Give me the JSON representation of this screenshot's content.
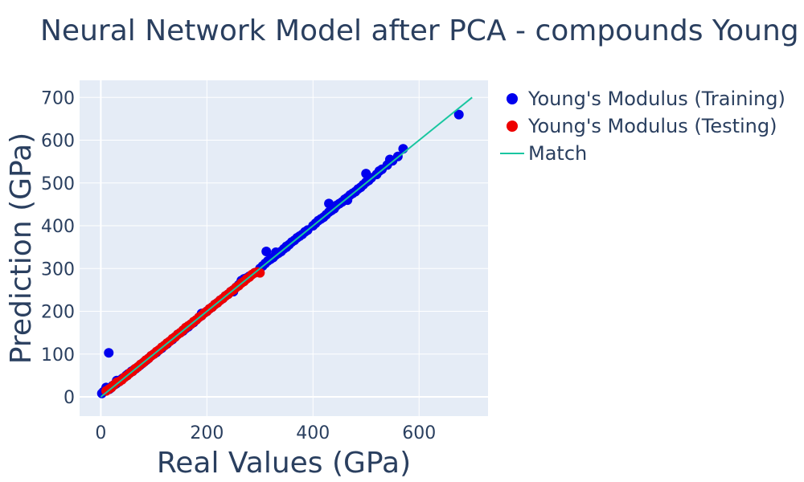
{
  "chart_data": {
    "type": "scatter",
    "title": "Neural Network Model after PCA - compounds Young",
    "xlabel": "Real Values (GPa)",
    "ylabel": "Prediction (GPa)",
    "xlim": [
      -40,
      730
    ],
    "ylim": [
      -45,
      740
    ],
    "x_ticks": [
      0,
      200,
      400,
      600
    ],
    "y_ticks": [
      0,
      100,
      200,
      300,
      400,
      500,
      600,
      700
    ],
    "grid": true,
    "legend_position": "right",
    "colors": {
      "plot_bg": "#e5ecf6",
      "grid": "#ffffff",
      "text": "#2a3f5f"
    },
    "series": [
      {
        "name": "Young's Modulus (Training)",
        "mode": "markers",
        "color": "#0000ee",
        "x": [
          2,
          5,
          8,
          10,
          12,
          15,
          16,
          18,
          20,
          22,
          25,
          28,
          30,
          32,
          35,
          38,
          40,
          42,
          45,
          48,
          50,
          52,
          55,
          58,
          60,
          63,
          66,
          70,
          74,
          78,
          82,
          86,
          90,
          95,
          100,
          105,
          110,
          115,
          120,
          125,
          130,
          135,
          140,
          145,
          150,
          155,
          160,
          165,
          170,
          175,
          180,
          185,
          190,
          195,
          200,
          205,
          210,
          215,
          220,
          225,
          230,
          235,
          240,
          245,
          250,
          255,
          260,
          265,
          270,
          275,
          280,
          290,
          300,
          305,
          310,
          315,
          320,
          325,
          330,
          335,
          340,
          345,
          350,
          355,
          360,
          365,
          370,
          375,
          380,
          385,
          390,
          400,
          405,
          410,
          415,
          420,
          425,
          430,
          435,
          440,
          445,
          450,
          455,
          460,
          465,
          470,
          475,
          480,
          485,
          490,
          495,
          500,
          505,
          510,
          520,
          525,
          530,
          540,
          545,
          550,
          560,
          570,
          675,
          14,
          30,
          60,
          190,
          250,
          265,
          312,
          330,
          350,
          430,
          465,
          500
        ],
        "y": [
          8,
          12,
          14,
          22,
          16,
          103,
          18,
          20,
          22,
          26,
          28,
          30,
          32,
          34,
          36,
          40,
          42,
          44,
          46,
          50,
          52,
          54,
          56,
          60,
          60,
          64,
          66,
          70,
          74,
          78,
          82,
          86,
          90,
          96,
          100,
          104,
          110,
          114,
          120,
          124,
          130,
          134,
          140,
          146,
          150,
          154,
          160,
          164,
          170,
          174,
          180,
          186,
          190,
          196,
          200,
          206,
          210,
          216,
          220,
          226,
          230,
          236,
          240,
          246,
          250,
          256,
          262,
          270,
          276,
          278,
          282,
          290,
          300,
          306,
          312,
          318,
          322,
          326,
          332,
          336,
          340,
          346,
          350,
          356,
          362,
          366,
          372,
          376,
          380,
          386,
          390,
          400,
          406,
          412,
          416,
          420,
          426,
          432,
          436,
          440,
          448,
          452,
          456,
          462,
          466,
          472,
          476,
          480,
          486,
          490,
          496,
          502,
          506,
          512,
          520,
          528,
          532,
          542,
          555,
          552,
          562,
          580,
          660,
          20,
          38,
          60,
          195,
          246,
          272,
          340,
          338,
          352,
          452,
          460,
          522
        ]
      },
      {
        "name": "Young's Modulus (Testing)",
        "mode": "markers",
        "color": "#ee0000",
        "x": [
          10,
          15,
          20,
          25,
          30,
          35,
          40,
          45,
          50,
          55,
          60,
          65,
          70,
          75,
          80,
          85,
          90,
          95,
          100,
          105,
          110,
          115,
          120,
          125,
          130,
          135,
          140,
          145,
          150,
          155,
          160,
          165,
          170,
          175,
          180,
          185,
          190,
          195,
          200,
          205,
          210,
          215,
          220,
          225,
          230,
          235,
          240,
          245,
          250,
          255,
          260,
          265,
          270,
          275,
          280,
          285,
          290,
          295,
          300
        ],
        "y": [
          14,
          18,
          22,
          28,
          34,
          36,
          40,
          46,
          50,
          56,
          60,
          66,
          70,
          76,
          80,
          86,
          90,
          96,
          100,
          106,
          110,
          116,
          120,
          126,
          130,
          136,
          140,
          146,
          150,
          156,
          162,
          166,
          170,
          176,
          180,
          186,
          190,
          196,
          200,
          206,
          210,
          216,
          220,
          226,
          230,
          236,
          240,
          246,
          250,
          256,
          260,
          266,
          270,
          276,
          280,
          286,
          290,
          292,
          290
        ]
      },
      {
        "name": "Match",
        "mode": "line",
        "color": "#19c6a0",
        "x": [
          0,
          700
        ],
        "y": [
          0,
          700
        ]
      }
    ]
  }
}
